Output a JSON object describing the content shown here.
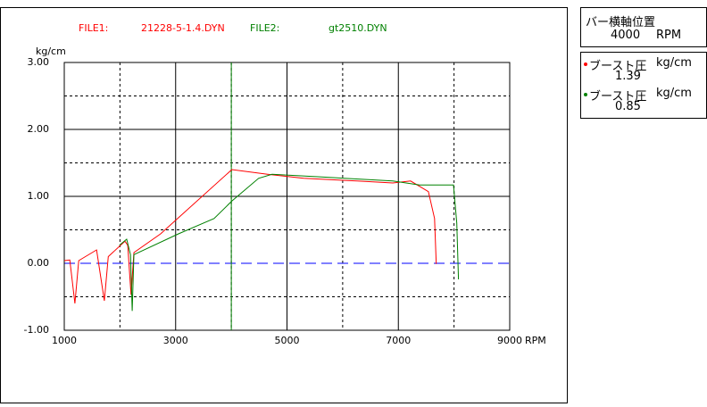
{
  "chart_data": {
    "type": "line",
    "y_unit": "kg/cm",
    "x_unit": "RPM",
    "xlim": [
      1000,
      9000
    ],
    "ylim": [
      -1,
      3
    ],
    "xticks": [
      1000,
      3000,
      5000,
      7000,
      9000
    ],
    "minor_xticks": [
      2000,
      4000,
      6000,
      8000
    ],
    "yticks": [
      {
        "value": -1,
        "label": "-1.00"
      },
      {
        "value": 0,
        "label": "0.00"
      },
      {
        "value": 1,
        "label": "1.00"
      },
      {
        "value": 2,
        "label": "2.00"
      },
      {
        "value": 3,
        "label": "3.00"
      }
    ],
    "minor_yticks": [
      -0.5,
      0.5,
      1.5,
      2.5
    ],
    "zero_line_color": "#0000ff",
    "series": [
      {
        "label": "FILE1:",
        "name": "21228-5-1.4.DYN",
        "color": "#ff0000",
        "x": [
          1000,
          1100,
          1190,
          1260,
          1580,
          1720,
          1790,
          2090,
          2140,
          2200,
          2250,
          2730,
          4010,
          4650,
          5300,
          6260,
          6900,
          7220,
          7540,
          7650,
          7680
        ],
        "values": [
          0.04,
          0.05,
          -0.6,
          0.04,
          0.2,
          -0.56,
          0.1,
          0.33,
          0.27,
          -0.47,
          0.16,
          0.44,
          1.4,
          1.33,
          1.27,
          1.23,
          1.2,
          1.23,
          1.07,
          0.67,
          -0.01
        ]
      },
      {
        "label": "FILE2:",
        "name": "gt2510.DYN",
        "color": "#008000",
        "x": [
          1990,
          2120,
          2190,
          2220,
          2250,
          3050,
          3690,
          4010,
          4490,
          4730,
          5620,
          6900,
          7380,
          7990,
          8050,
          8080
        ],
        "values": [
          0.27,
          0.36,
          0.13,
          -0.71,
          0.13,
          0.44,
          0.67,
          0.93,
          1.27,
          1.33,
          1.29,
          1.23,
          1.17,
          1.17,
          0.6,
          -0.24
        ]
      }
    ]
  },
  "panel": {
    "title": "バー横軸位置",
    "rpm": 4000,
    "rpm_unit": "RPM",
    "cursor_color": "#008000",
    "readouts": [
      {
        "name": "ブースト圧",
        "unit": "kg/cm",
        "value": 1.39,
        "color": "#ff0000"
      },
      {
        "name": "ブースト圧",
        "unit": "kg/cm",
        "value": 0.85,
        "color": "#008000"
      }
    ]
  }
}
